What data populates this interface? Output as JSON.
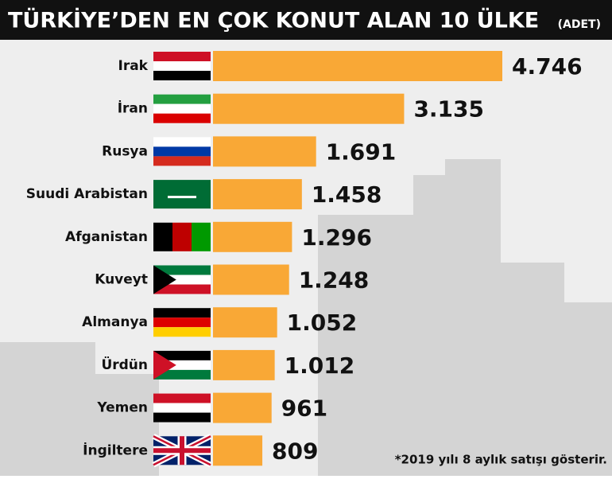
{
  "chart_data": {
    "type": "bar",
    "orientation": "horizontal",
    "title": "TÜRKİYE’DEN EN ÇOK KONUT ALAN 10 ÜLKE",
    "subtitle": "(ADET)",
    "categories": [
      "Irak",
      "İran",
      "Rusya",
      "Suudi Arabistan",
      "Afganistan",
      "Kuveyt",
      "Almanya",
      "Ürdün",
      "Yemen",
      "İngiltere"
    ],
    "values": [
      4746,
      3135,
      1691,
      1458,
      1296,
      1248,
      1052,
      1012,
      961,
      809
    ],
    "value_labels": [
      "4.746",
      "3.135",
      "1.691",
      "1.458",
      "1.296",
      "1.248",
      "1.052",
      "1.012",
      "961",
      "809"
    ],
    "color": "#f9a836",
    "note": "*2019 yılı 8 aylık satışı gösterir."
  }
}
